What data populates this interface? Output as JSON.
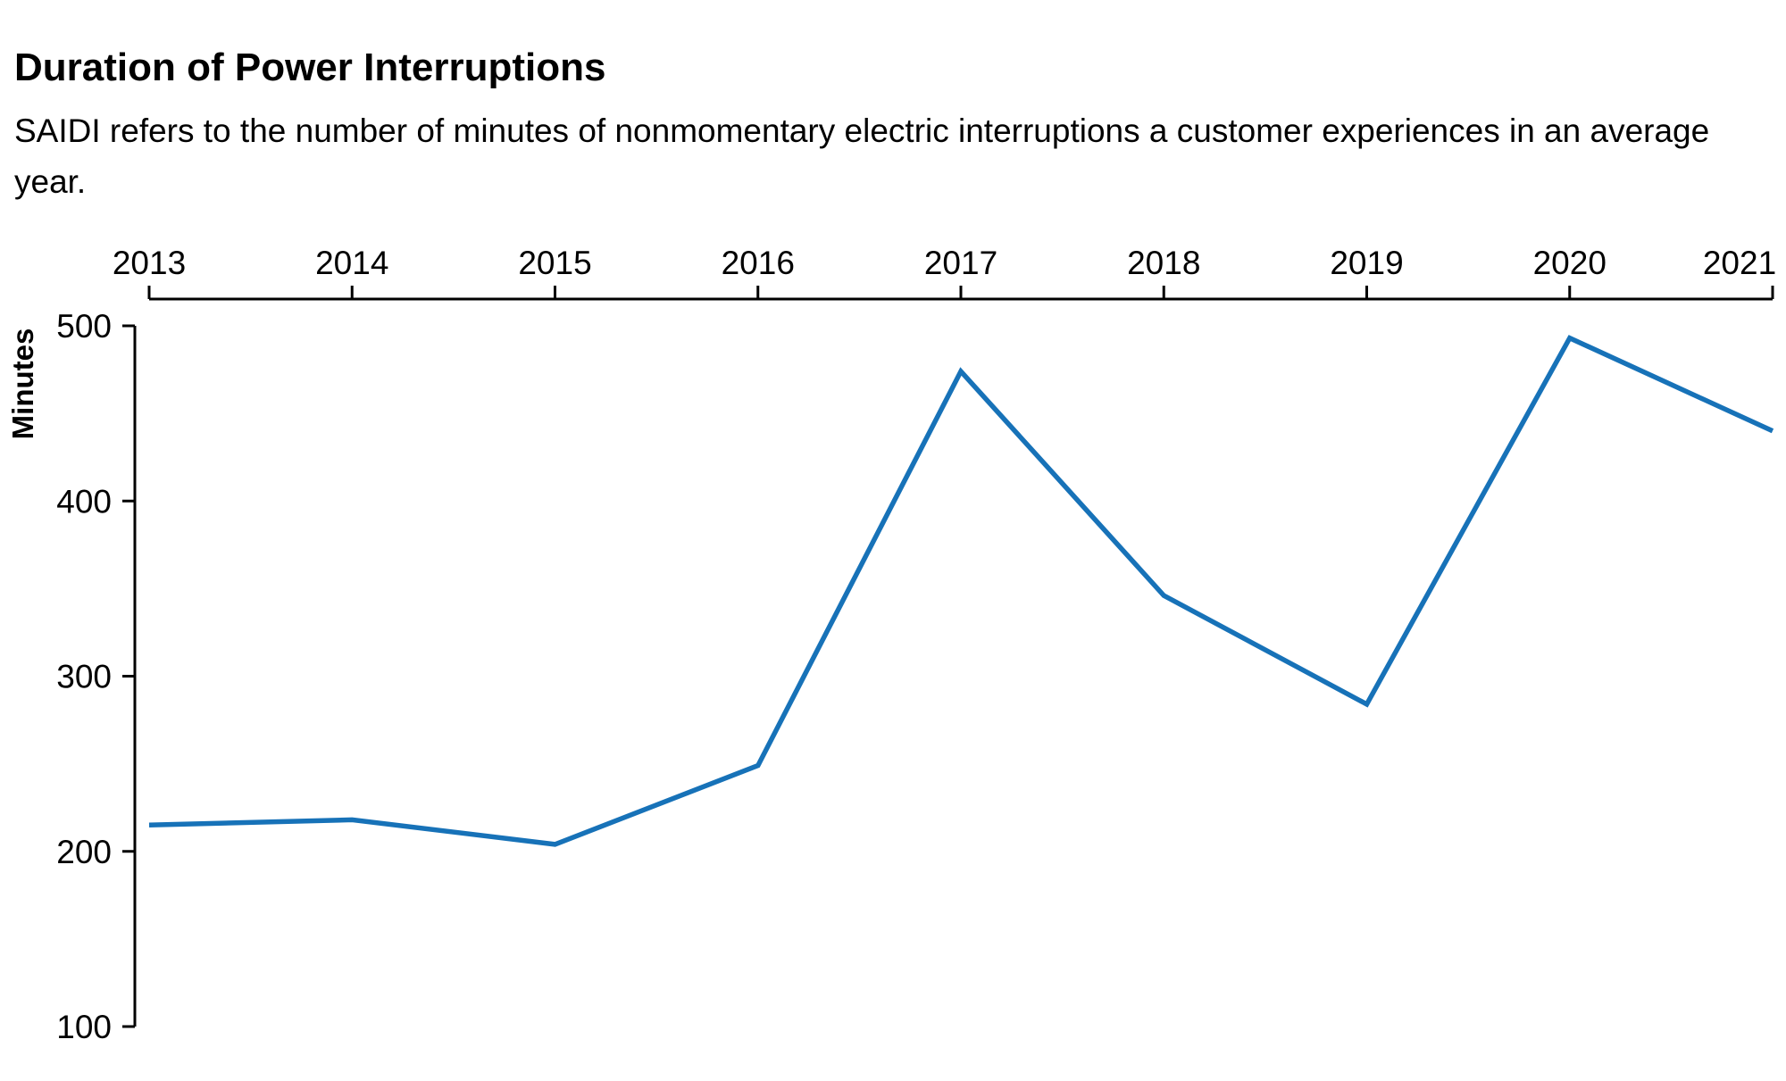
{
  "chart_data": {
    "type": "line",
    "title": "Duration of Power Interruptions",
    "subtitle": "SAIDI refers to the number of minutes of nonmomentary electric interruptions a customer experiences in an average year.",
    "xlabel": "",
    "ylabel": "Minutes",
    "x": [
      2013,
      2014,
      2015,
      2016,
      2017,
      2018,
      2019,
      2020,
      2021
    ],
    "x_tick_labels": [
      "2013",
      "2014",
      "2015",
      "2016",
      "2017",
      "2018",
      "2019",
      "2020",
      "2021"
    ],
    "series": [
      {
        "values": [
          215,
          218,
          204,
          249,
          474,
          346,
          284,
          493,
          440
        ],
        "color": "#1772b8"
      }
    ],
    "y_ticks": [
      100,
      200,
      300,
      400,
      500
    ],
    "y_tick_labels": [
      "100",
      "200",
      "300",
      "400",
      "500"
    ],
    "ylim": [
      100,
      500
    ],
    "xlim": [
      2013,
      2021
    ],
    "x_axis_position": "top",
    "grid": false,
    "legend": "none",
    "axis_color": "#000000"
  }
}
